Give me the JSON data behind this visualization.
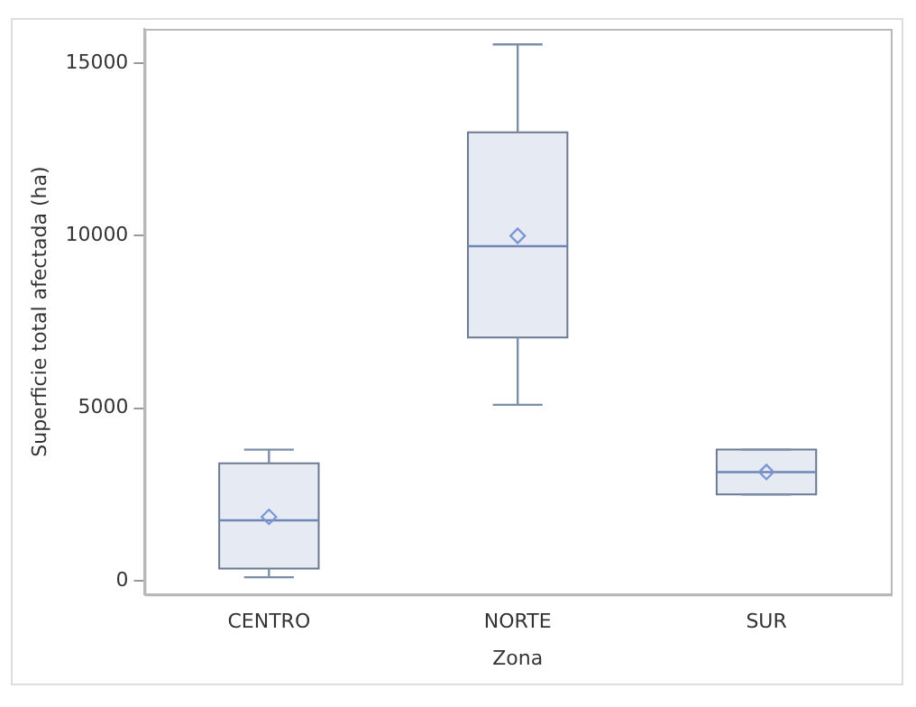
{
  "chart_data": {
    "type": "box",
    "xlabel": "Zona",
    "ylabel": "Superficie total afectada (ha)",
    "categories": [
      "CENTRO",
      "NORTE",
      "SUR"
    ],
    "boxes": [
      {
        "low": 100,
        "q1": 350,
        "median": 1750,
        "q3": 3400,
        "high": 3800,
        "mean": 1850
      },
      {
        "low": 5100,
        "q1": 7050,
        "median": 9700,
        "q3": 13000,
        "high": 15550,
        "mean": 10000
      },
      {
        "low": 2500,
        "q1": 2500,
        "median": 3150,
        "q3": 3800,
        "high": 3800,
        "mean": 3150
      }
    ],
    "color": "#e6eaf3",
    "ylim": [
      -400,
      16000
    ],
    "yticks": [
      0,
      5000,
      10000,
      15000
    ],
    "grid": false,
    "legend": false,
    "marker": "diamond"
  }
}
